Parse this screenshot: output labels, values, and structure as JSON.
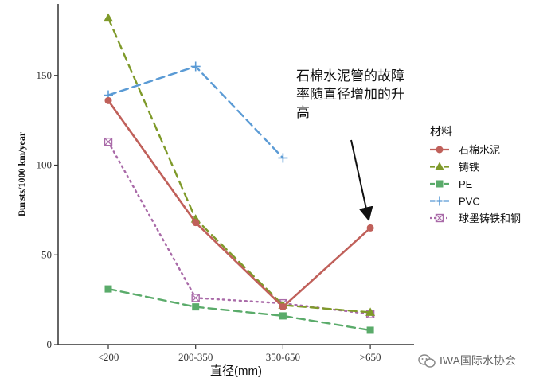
{
  "chart_data": {
    "type": "line",
    "title": "",
    "xlabel": "直径(mm)",
    "ylabel": "Bursts/1000 km/year",
    "categories": [
      "<200",
      "200-350",
      "350-650",
      ">650"
    ],
    "y_ticks": [
      "0",
      "50",
      "100",
      "150"
    ],
    "ylim": [
      0,
      185
    ],
    "grid": false,
    "legend": {
      "title": "材料",
      "placement": "right"
    },
    "series": [
      {
        "name": "石棉水泥",
        "color": "#c0605a",
        "style": "solid",
        "marker": "circle",
        "values": [
          136,
          68,
          21,
          65
        ]
      },
      {
        "name": "铸铁",
        "color": "#7f9a2a",
        "style": "dashed",
        "marker": "triangle",
        "values": [
          182,
          70,
          22,
          18
        ]
      },
      {
        "name": "PE",
        "color": "#5aab6a",
        "style": "dashed",
        "marker": "square",
        "values": [
          31,
          21,
          16,
          8
        ]
      },
      {
        "name": "PVC",
        "color": "#5b9bd5",
        "style": "dashed",
        "marker": "plus",
        "values": [
          139,
          155,
          104,
          null
        ]
      },
      {
        "name": "球墨铸铁和钢",
        "color": "#a96aa8",
        "style": "dotted",
        "marker": "boxcross",
        "values": [
          113,
          26,
          23,
          17
        ]
      }
    ],
    "annotation": {
      "lines": [
        "石棉水泥管的故障",
        "率随直径增加的升",
        "高"
      ],
      "arrow_target_category": ">650",
      "arrow_target_value": 65
    }
  },
  "watermark": {
    "text": "IWA国际水协会",
    "icon": "wechat-icon"
  }
}
